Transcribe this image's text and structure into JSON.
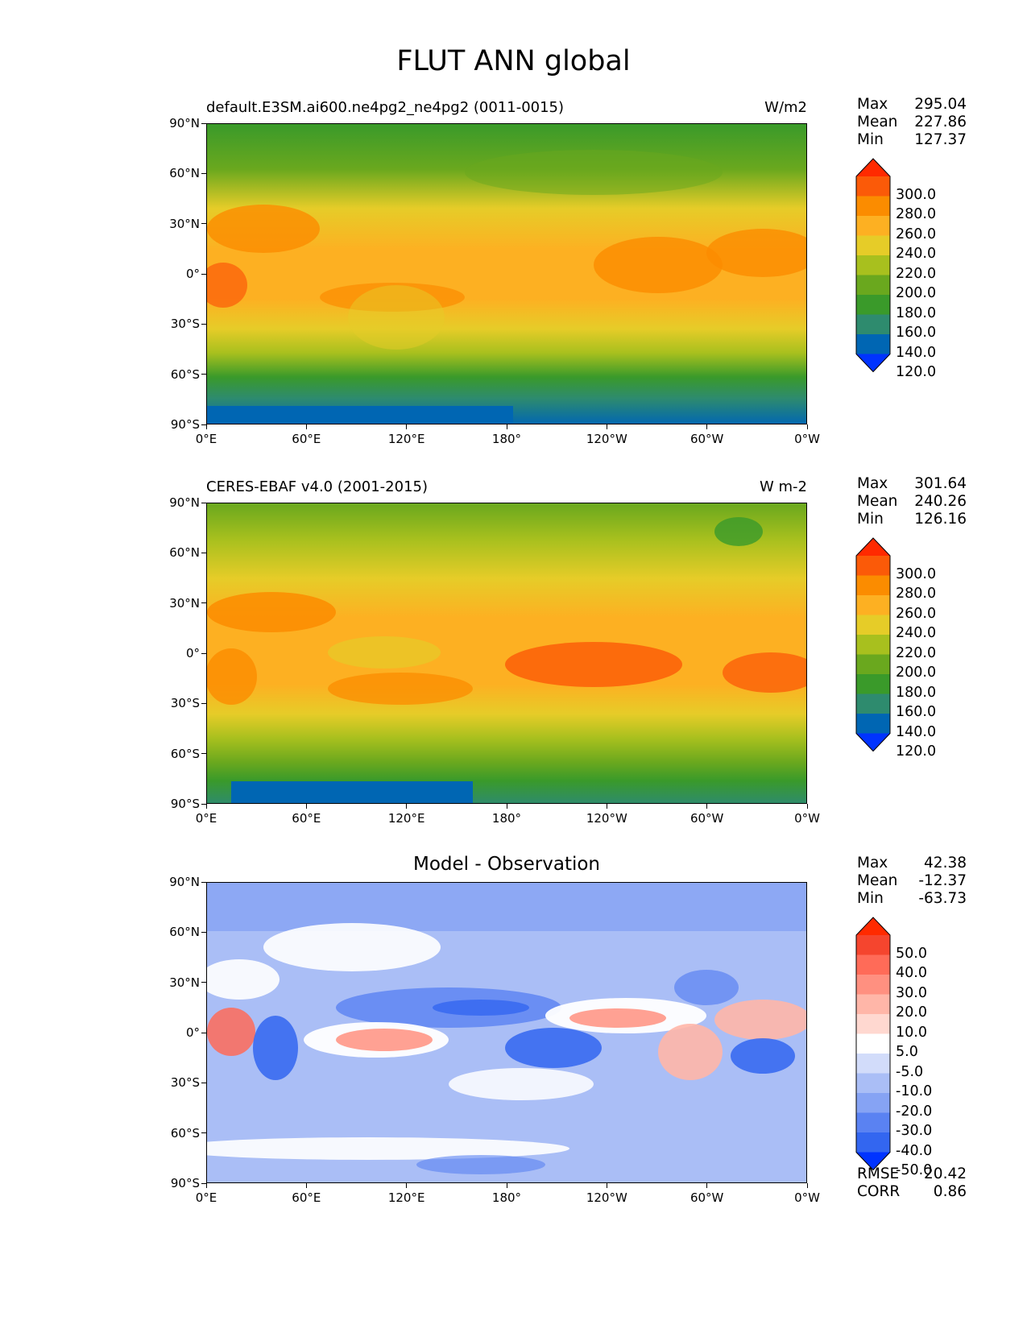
{
  "figure": {
    "title": "FLUT ANN global"
  },
  "axes": {
    "lat_labels": [
      "90°N",
      "60°N",
      "30°N",
      "0°",
      "30°S",
      "60°S",
      "90°S"
    ],
    "lon_labels": [
      "0°E",
      "60°E",
      "120°E",
      "180°",
      "120°W",
      "60°W",
      "0°W"
    ]
  },
  "panels": [
    {
      "title_left": "default.E3SM.ai600.ne4pg2_ne4pg2 (0011-0015)",
      "title_center": "",
      "units": "W/m2",
      "stats": {
        "max_label": "Max",
        "max": "295.04",
        "mean_label": "Mean",
        "mean": "227.86",
        "min_label": "Min",
        "min": "127.37"
      },
      "colorbar_labels": [
        "300.0",
        "280.0",
        "260.0",
        "240.0",
        "220.0",
        "200.0",
        "180.0",
        "160.0",
        "140.0",
        "120.0"
      ]
    },
    {
      "title_left": "CERES-EBAF v4.0 (2001-2015)",
      "title_center": "",
      "units": "W m-2",
      "stats": {
        "max_label": "Max",
        "max": "301.64",
        "mean_label": "Mean",
        "mean": "240.26",
        "min_label": "Min",
        "min": "126.16"
      },
      "colorbar_labels": [
        "300.0",
        "280.0",
        "260.0",
        "240.0",
        "220.0",
        "200.0",
        "180.0",
        "160.0",
        "140.0",
        "120.0"
      ]
    },
    {
      "title_left": "",
      "title_center": "Model - Observation",
      "units": "",
      "stats": {
        "max_label": "Max",
        "max": "42.38",
        "mean_label": "Mean",
        "mean": "-12.37",
        "min_label": "Min",
        "min": "-63.73"
      },
      "colorbar_labels": [
        "50.0",
        "40.0",
        "30.0",
        "20.0",
        "10.0",
        "5.0",
        "-5.0",
        "-10.0",
        "-20.0",
        "-30.0",
        "-40.0",
        "-50.0"
      ],
      "metrics": {
        "rmse_label": "RMSE",
        "rmse": "20.42",
        "corr_label": "CORR",
        "corr": "0.86"
      }
    }
  ],
  "colors": {
    "flut_scale": [
      "#0033ff",
      "#0066b3",
      "#2e8b6e",
      "#3a9a2a",
      "#6aa81e",
      "#a8c01e",
      "#e6cc28",
      "#fdb022",
      "#fb8c00",
      "#fb5a08",
      "#ff2a00"
    ],
    "diff_scale": [
      "#0033ff",
      "#3366f0",
      "#5a82f2",
      "#86a3f4",
      "#aabef6",
      "#d2dcfa",
      "#ffffff",
      "#ffd8d0",
      "#ffb6a8",
      "#ff9080",
      "#ff6b58",
      "#f5452e",
      "#ff2a00"
    ]
  }
}
